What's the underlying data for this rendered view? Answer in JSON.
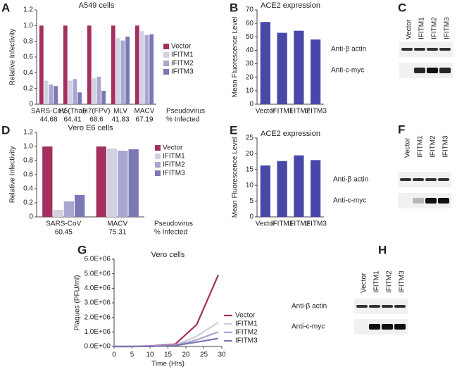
{
  "chart_data": [
    {
      "type": "bar",
      "panel": "A",
      "title": "A549 cells",
      "y_label": "Relative Infectivity",
      "categories": [
        "SARS-CoV",
        "H5(Thai)",
        "H7(FPV)",
        "MLV",
        "MACV"
      ],
      "infected_pct": [
        44.68,
        64.41,
        68.6,
        41.83,
        67.19
      ],
      "pseudovirus_label": "Pseudovirus",
      "infected_label": "% Infected",
      "series": [
        {
          "name": "Vector",
          "color": "#a3305e",
          "values": [
            1,
            1,
            1,
            1,
            1
          ]
        },
        {
          "name": "IFITM1",
          "color": "#d3d0e4",
          "values": [
            0.3,
            0.3,
            0.33,
            0.84,
            0.93
          ]
        },
        {
          "name": "IFITM2",
          "color": "#a9a6cf",
          "values": [
            0.25,
            0.32,
            0.35,
            0.81,
            0.88
          ]
        },
        {
          "name": "IFITM3",
          "color": "#7b78b6",
          "values": [
            0.23,
            0.15,
            0.17,
            0.86,
            0.89
          ]
        }
      ],
      "ylim": [
        0,
        1.2
      ],
      "yticks": [
        0,
        0.2,
        0.4,
        0.6,
        0.8,
        {
          "value": 1,
          "label": "1.0"
        },
        1.2
      ],
      "legend": "right"
    },
    {
      "type": "bar",
      "panel": "B",
      "title": "ACE2 expression",
      "y_label": "Mean Fluorescence Level",
      "categories": [
        "Vector",
        "IFITM1",
        "IFITM2",
        "IFITM3"
      ],
      "values": [
        61,
        53,
        54.5,
        48
      ],
      "color": "#4848a8",
      "ylim": [
        0,
        70
      ],
      "yticks": [
        0,
        10,
        20,
        30,
        40,
        50,
        60,
        70
      ]
    },
    {
      "type": "bar",
      "panel": "D",
      "title": "Vero E6 cells",
      "y_label": "Relative Infectivity",
      "categories": [
        "SARS-CoV",
        "MACV"
      ],
      "infected_pct": [
        60.45,
        75.31
      ],
      "pseudovirus_label": "Pseudovirus",
      "infected_label": "% Infected",
      "series": [
        {
          "name": "Vector",
          "color": "#a3305e",
          "values": [
            1,
            1
          ]
        },
        {
          "name": "IFITM1",
          "color": "#d3d0e4",
          "values": [
            0.1,
            0.97
          ]
        },
        {
          "name": "IFITM2",
          "color": "#a9a6cf",
          "values": [
            0.22,
            0.94
          ]
        },
        {
          "name": "IFITM3",
          "color": "#7b78b6",
          "values": [
            0.31,
            0.96
          ]
        }
      ],
      "ylim": [
        0,
        1.2
      ],
      "yticks": [
        0,
        0.2,
        0.4,
        0.6,
        0.8,
        {
          "value": 1,
          "label": "1.0"
        },
        1.2
      ],
      "legend": "right"
    },
    {
      "type": "bar",
      "panel": "E",
      "title": "ACE2 expression",
      "y_label": "Mean Fluorescence Level",
      "categories": [
        "Vector",
        "IFITM1",
        "IFITM2",
        "IFITM3"
      ],
      "values": [
        16.3,
        17.7,
        19.5,
        18
      ],
      "color": "#4848a8",
      "ylim": [
        0,
        25
      ],
      "yticks": [
        0,
        5,
        10,
        15,
        20,
        25
      ]
    },
    {
      "type": "line",
      "panel": "G",
      "title": "Vero cells",
      "y_label": "Plaques (PFU/ml)",
      "x_label": "Time (Hrs)",
      "x": [
        0,
        5,
        11,
        17,
        23,
        29
      ],
      "series": [
        {
          "name": "Vector",
          "color": "#a3305e",
          "values": [
            0,
            0,
            50000,
            150000,
            1500000,
            4900000
          ]
        },
        {
          "name": "IFITM1",
          "color": "#cfcce2",
          "values": [
            0,
            0,
            30000,
            100000,
            700000,
            1650000
          ]
        },
        {
          "name": "IFITM2",
          "color": "#a9a6cf",
          "values": [
            0,
            0,
            20000,
            80000,
            450000,
            1000000
          ]
        },
        {
          "name": "IFITM3",
          "color": "#7b78b6",
          "values": [
            0,
            0,
            10000,
            60000,
            300000,
            550000
          ]
        }
      ],
      "xlim": [
        0,
        30
      ],
      "xticks": [
        0,
        5,
        10,
        15,
        20,
        25,
        30
      ],
      "ylim": [
        0,
        6000000
      ],
      "yticks": [
        {
          "value": 0,
          "label": "0.0E+00"
        },
        {
          "value": 1000000,
          "label": "1.0E+06"
        },
        {
          "value": 2000000,
          "label": "2.0E+06"
        },
        {
          "value": 3000000,
          "label": "3.0E+06"
        },
        {
          "value": 4000000,
          "label": "4.0E+06"
        },
        {
          "value": 5000000,
          "label": "5.0E+06"
        },
        {
          "value": 6000000,
          "label": "6.0E+06"
        }
      ],
      "legend": "right"
    }
  ],
  "blots": [
    {
      "panel": "C",
      "lanes": [
        "Vector",
        "IFITM1",
        "IFITM2",
        "IFITM3"
      ],
      "rows": [
        "Anti-β actin",
        "Anti-c-myc"
      ]
    },
    {
      "panel": "F",
      "lanes": [
        "Vector",
        "IFITM1",
        "IFITM2",
        "IFITM3"
      ],
      "rows": [
        "Anti-β actin",
        "Anti-c-myc"
      ]
    },
    {
      "panel": "H",
      "lanes": [
        "Vector",
        "IFITM1",
        "IFITM2",
        "IFITM3"
      ],
      "rows": [
        "Anti-β actin",
        "Anti-c-myc"
      ]
    }
  ]
}
